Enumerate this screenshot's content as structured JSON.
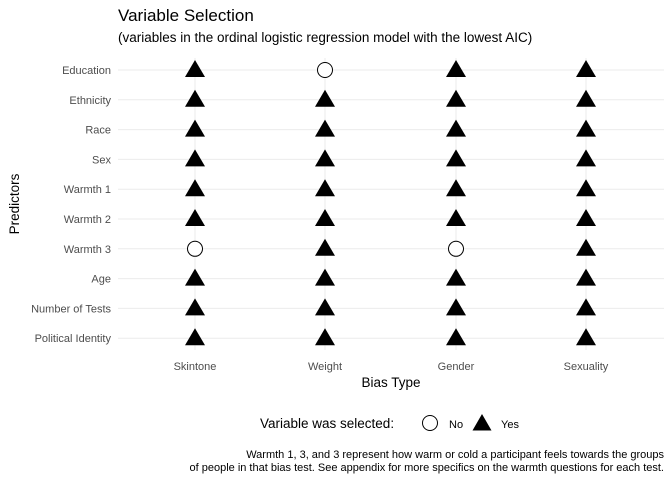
{
  "chart_data": {
    "type": "scatter",
    "title": "Variable Selection",
    "subtitle": "(variables in the ordinal logistic regression model with the lowest AIC)",
    "xlabel": "Bias Type",
    "ylabel": "Predictors",
    "categories_x": [
      "Skintone",
      "Weight",
      "Gender",
      "Sexuality"
    ],
    "categories_y": [
      "Education",
      "Ethnicity",
      "Race",
      "Sex",
      "Warmth 1",
      "Warmth 2",
      "Warmth 3",
      "Age",
      "Number of Tests",
      "Political Identity"
    ],
    "selected": [
      [
        "Yes",
        "No",
        "Yes",
        "Yes"
      ],
      [
        "Yes",
        "Yes",
        "Yes",
        "Yes"
      ],
      [
        "Yes",
        "Yes",
        "Yes",
        "Yes"
      ],
      [
        "Yes",
        "Yes",
        "Yes",
        "Yes"
      ],
      [
        "Yes",
        "Yes",
        "Yes",
        "Yes"
      ],
      [
        "Yes",
        "Yes",
        "Yes",
        "Yes"
      ],
      [
        "No",
        "Yes",
        "No",
        "Yes"
      ],
      [
        "Yes",
        "Yes",
        "Yes",
        "Yes"
      ],
      [
        "Yes",
        "Yes",
        "Yes",
        "Yes"
      ],
      [
        "Yes",
        "Yes",
        "Yes",
        "Yes"
      ]
    ],
    "legend": {
      "title": "Variable was selected:",
      "entries": [
        {
          "label": "No",
          "shape": "open-circle"
        },
        {
          "label": "Yes",
          "shape": "filled-triangle"
        }
      ],
      "position": "bottom"
    },
    "caption_lines": [
      "Warmth 1, 3, and 3 represent how warm or cold a participant feels towards the groups",
      "of people in that bias test. See appendix for more specifics on the warmth questions for each test."
    ],
    "grid": true
  }
}
